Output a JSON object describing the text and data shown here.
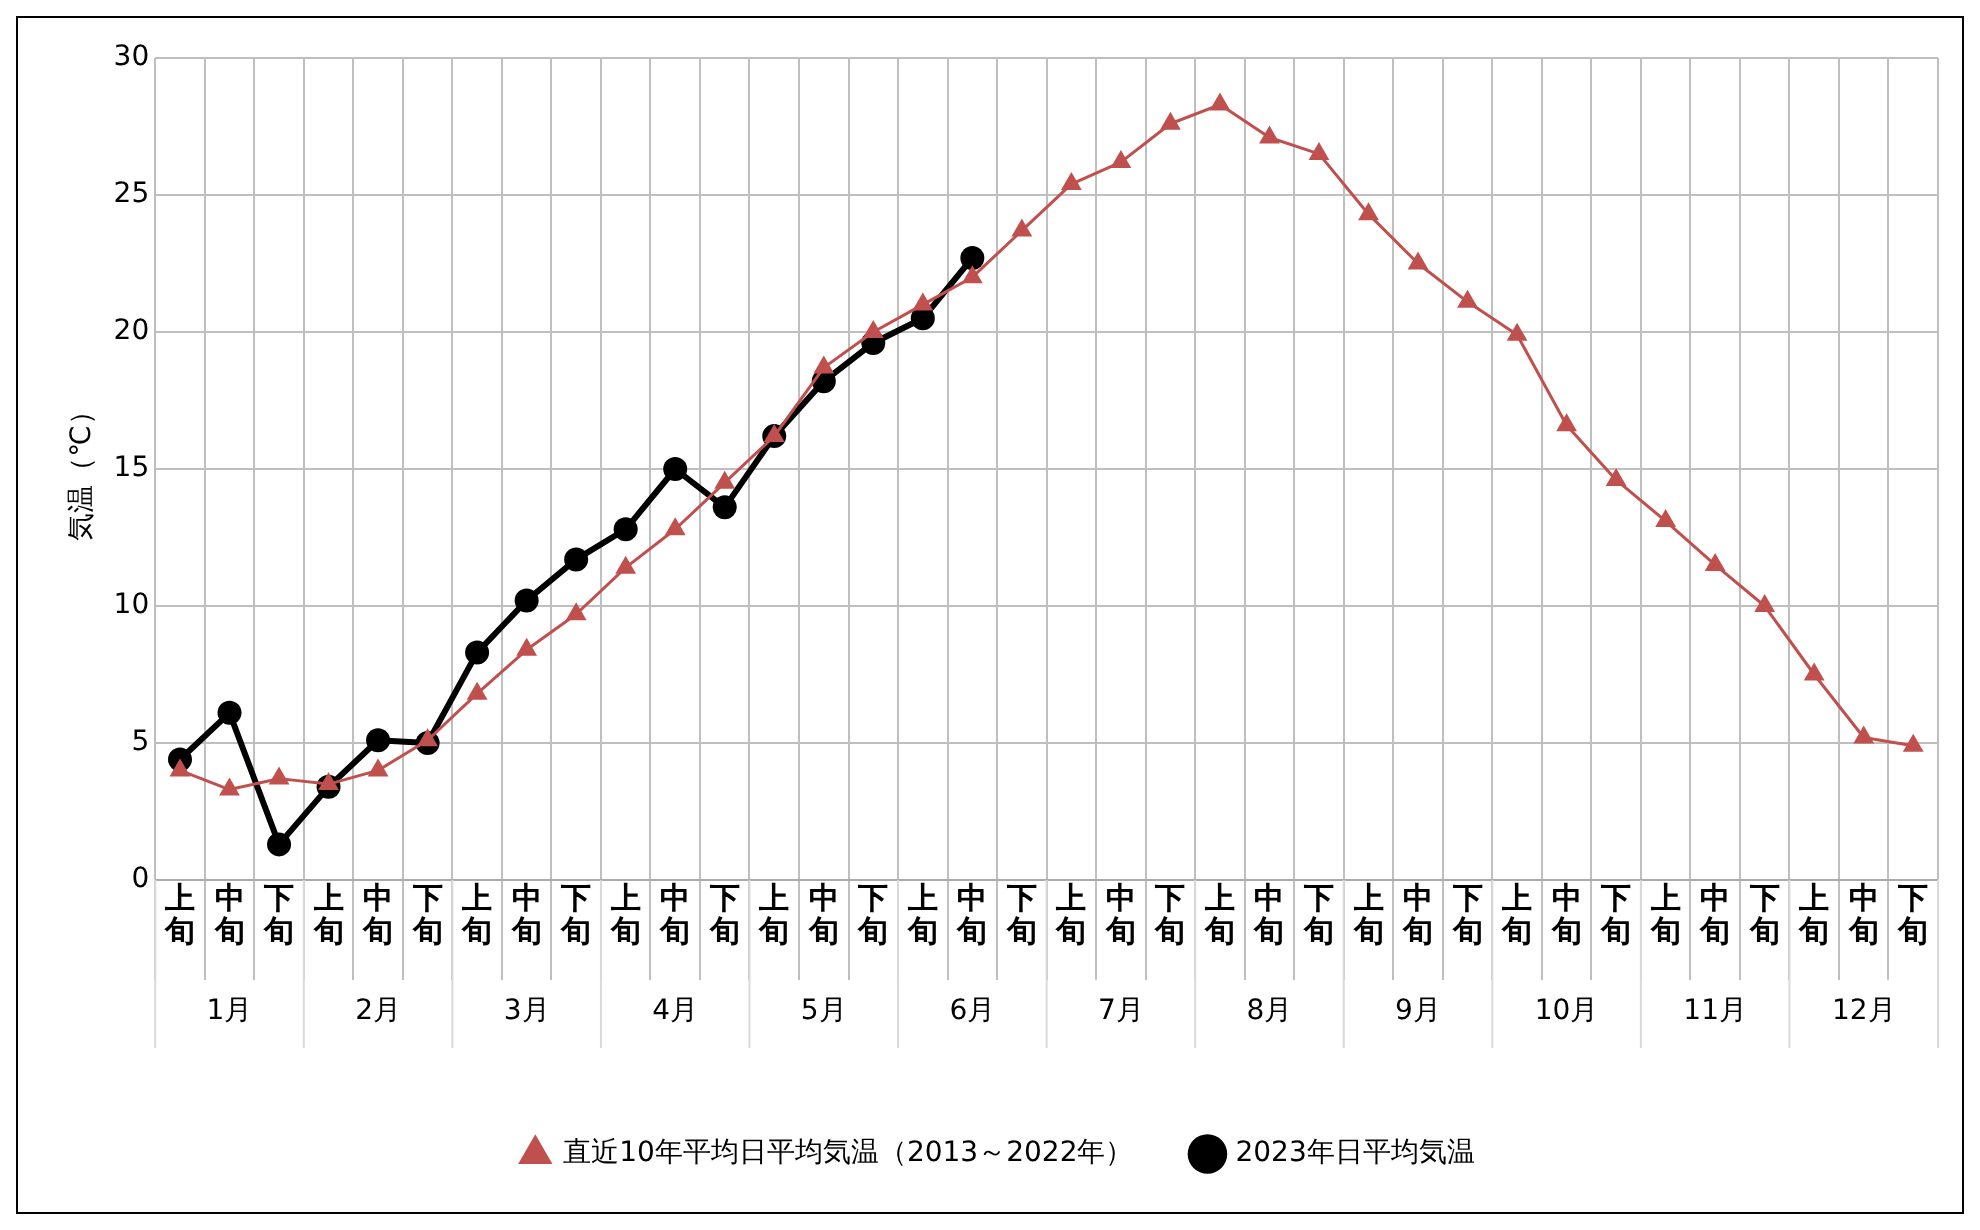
{
  "chart_data": {
    "type": "line",
    "ylabel": "気温（℃）",
    "categories": [
      "上旬",
      "中旬",
      "下旬",
      "上旬",
      "中旬",
      "下旬",
      "上旬",
      "中旬",
      "下旬",
      "上旬",
      "中旬",
      "下旬",
      "上旬",
      "中旬",
      "下旬",
      "上旬",
      "中旬",
      "下旬",
      "上旬",
      "中旬",
      "下旬",
      "上旬",
      "中旬",
      "下旬",
      "上旬",
      "中旬",
      "下旬",
      "上旬",
      "中旬",
      "下旬",
      "上旬",
      "中旬",
      "下旬",
      "上旬",
      "中旬",
      "下旬"
    ],
    "annotations": [
      "1月",
      "2月",
      "3月",
      "4月",
      "5月",
      "6月",
      "7月",
      "8月",
      "9月",
      "10月",
      "11月",
      "12月"
    ],
    "series": [
      {
        "name": "直近10年平均日平均気温（2013～2022年）",
        "color": "#c0504d",
        "marker": "triangle",
        "values": [
          4.0,
          3.3,
          3.7,
          3.5,
          4.0,
          5.1,
          6.8,
          8.4,
          9.7,
          11.4,
          12.8,
          14.5,
          16.2,
          18.7,
          20.0,
          21.0,
          22.0,
          23.7,
          25.4,
          26.2,
          27.6,
          28.3,
          27.1,
          26.5,
          24.3,
          22.5,
          21.1,
          19.9,
          16.6,
          14.6,
          13.1,
          11.5,
          10.0,
          7.5,
          5.2,
          4.9
        ]
      },
      {
        "name": "2023年日平均気温",
        "color": "#000000",
        "marker": "circle",
        "values": [
          4.4,
          6.1,
          1.3,
          3.4,
          5.1,
          5.0,
          8.3,
          10.2,
          11.7,
          12.8,
          15.0,
          13.6,
          16.2,
          18.2,
          19.6,
          20.5,
          22.7,
          null,
          null,
          null,
          null,
          null,
          null,
          null,
          null,
          null,
          null,
          null,
          null,
          null,
          null,
          null,
          null,
          null,
          null,
          null
        ]
      }
    ],
    "ylim": [
      0,
      30
    ],
    "yticks": [
      0,
      5,
      10,
      15,
      20,
      25,
      30
    ],
    "grid": true,
    "legend": "bottom"
  }
}
